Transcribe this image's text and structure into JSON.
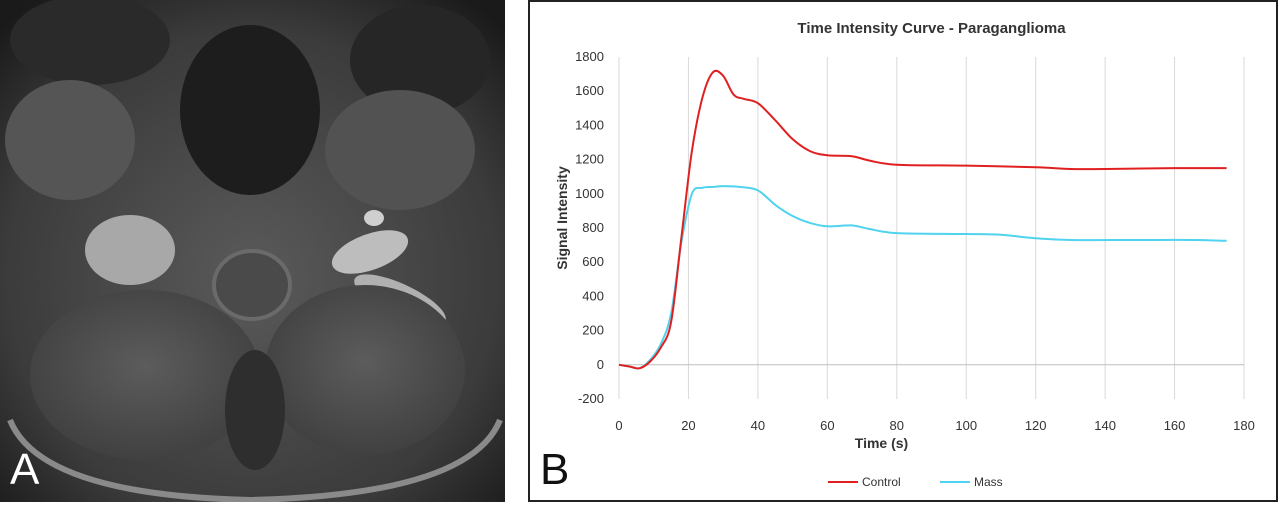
{
  "panel_a": {
    "letter": "A"
  },
  "panel_b": {
    "letter": "B"
  },
  "chart_data": {
    "type": "line",
    "title": "Time Intensity Curve - Paraganglioma",
    "xlabel": "Time (s)",
    "ylabel": "Signal Intensity",
    "xlim": [
      0,
      180
    ],
    "ylim": [
      -200,
      1800
    ],
    "xticks": [
      0,
      20,
      40,
      60,
      80,
      100,
      120,
      140,
      160,
      180
    ],
    "yticks": [
      -200,
      0,
      200,
      400,
      600,
      800,
      1000,
      1200,
      1400,
      1600,
      1800
    ],
    "grid": "vertical",
    "legend_position": "bottom",
    "series": [
      {
        "name": "Control",
        "color": "#e02020",
        "points": [
          [
            0,
            0
          ],
          [
            3,
            -10
          ],
          [
            6,
            -20
          ],
          [
            9,
            20
          ],
          [
            12,
            100
          ],
          [
            15,
            250
          ],
          [
            18,
            750
          ],
          [
            21,
            1250
          ],
          [
            24,
            1560
          ],
          [
            27,
            1710
          ],
          [
            30,
            1690
          ],
          [
            33,
            1580
          ],
          [
            36,
            1555
          ],
          [
            40,
            1530
          ],
          [
            45,
            1430
          ],
          [
            50,
            1320
          ],
          [
            55,
            1250
          ],
          [
            60,
            1225
          ],
          [
            67,
            1220
          ],
          [
            72,
            1195
          ],
          [
            80,
            1170
          ],
          [
            100,
            1165
          ],
          [
            120,
            1155
          ],
          [
            130,
            1145
          ],
          [
            140,
            1145
          ],
          [
            160,
            1150
          ],
          [
            175,
            1150
          ]
        ]
      },
      {
        "name": "Mass",
        "color": "#4fd3ee",
        "points": [
          [
            0,
            0
          ],
          [
            3,
            -10
          ],
          [
            6,
            -20
          ],
          [
            9,
            30
          ],
          [
            12,
            120
          ],
          [
            15,
            300
          ],
          [
            18,
            720
          ],
          [
            21,
            1000
          ],
          [
            24,
            1035
          ],
          [
            27,
            1040
          ],
          [
            30,
            1045
          ],
          [
            35,
            1040
          ],
          [
            40,
            1020
          ],
          [
            45,
            935
          ],
          [
            50,
            870
          ],
          [
            55,
            830
          ],
          [
            60,
            810
          ],
          [
            67,
            815
          ],
          [
            72,
            795
          ],
          [
            80,
            770
          ],
          [
            100,
            765
          ],
          [
            110,
            760
          ],
          [
            120,
            740
          ],
          [
            130,
            730
          ],
          [
            150,
            730
          ],
          [
            165,
            730
          ],
          [
            175,
            725
          ]
        ]
      }
    ]
  }
}
